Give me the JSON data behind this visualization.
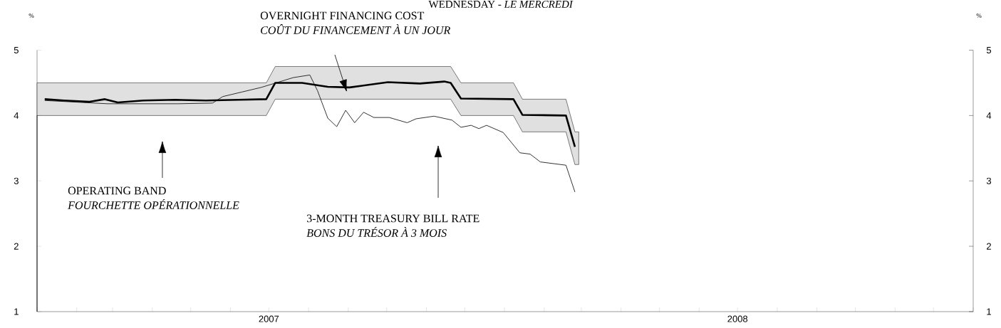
{
  "chart_data": {
    "type": "line",
    "title": "WEDNESDAY - *LE MERCREDI*",
    "ylabel": "%",
    "y2label": "%",
    "xlim": [
      "2007-01-01",
      "2009-01-01"
    ],
    "xticks": [
      {
        "value": "2007-01-01",
        "label": null
      },
      {
        "value": "2007-02-01",
        "label": null
      },
      {
        "value": "2007-03-01",
        "label": null
      },
      {
        "value": "2007-04-01",
        "label": null
      },
      {
        "value": "2007-05-01",
        "label": null
      },
      {
        "value": "2007-06-01",
        "label": null
      },
      {
        "value": "2007-07-01",
        "label": "2007"
      },
      {
        "value": "2007-08-01",
        "label": null
      },
      {
        "value": "2007-09-01",
        "label": null
      },
      {
        "value": "2007-10-01",
        "label": null
      },
      {
        "value": "2007-11-01",
        "label": null
      },
      {
        "value": "2007-12-01",
        "label": null
      },
      {
        "value": "2008-01-01",
        "label": null
      },
      {
        "value": "2008-02-01",
        "label": null
      },
      {
        "value": "2008-03-01",
        "label": null
      },
      {
        "value": "2008-04-01",
        "label": null
      },
      {
        "value": "2008-05-01",
        "label": null
      },
      {
        "value": "2008-06-01",
        "label": null
      },
      {
        "value": "2008-07-01",
        "label": "2008"
      },
      {
        "value": "2008-08-01",
        "label": null
      },
      {
        "value": "2008-09-01",
        "label": null
      },
      {
        "value": "2008-10-01",
        "label": null
      },
      {
        "value": "2008-11-01",
        "label": null
      },
      {
        "value": "2008-12-01",
        "label": null
      },
      {
        "value": "2009-01-01",
        "label": null
      }
    ],
    "ylim": [
      1,
      5
    ],
    "yticks": [
      1,
      2,
      3,
      4,
      5
    ],
    "y2lim": [
      1,
      5
    ],
    "y2ticks": [
      1,
      2,
      3,
      4,
      5
    ],
    "series": [
      {
        "color": "#000000",
        "x": [
          "2007-01-01",
          "2007-01-07",
          "2007-01-22",
          "2007-02-11",
          "2007-02-23",
          "2007-03-05",
          "2007-03-25",
          "2007-04-19",
          "2007-05-13",
          "2007-06-07",
          "2007-06-29",
          "2007-07-06",
          "2007-07-27",
          "2007-08-16",
          "2007-09-02",
          "2007-10-02",
          "2007-10-27",
          "2007-11-15",
          "2007-11-20",
          "2007-11-28",
          "2008-01-08",
          "2008-01-15",
          "2008-02-18",
          "2008-02-25",
          "2008-02-28"
        ],
        "values": [
          null,
          4.25,
          4.23,
          4.21,
          4.25,
          4.2,
          4.23,
          4.24,
          4.23,
          4.24,
          4.25,
          4.5,
          4.5,
          4.44,
          4.43,
          4.51,
          4.49,
          4.52,
          4.5,
          4.26,
          4.25,
          4.01,
          4.0,
          3.52,
          null
        ],
        "lower": [
          4.0,
          4.0,
          4.0,
          4.0,
          4.0,
          4.0,
          4.0,
          4.0,
          4.0,
          4.0,
          4.0,
          4.25,
          4.25,
          4.25,
          4.25,
          4.25,
          4.25,
          4.25,
          4.25,
          4.0,
          4.0,
          3.75,
          3.75,
          3.25,
          3.25
        ],
        "upper": [
          4.5,
          4.5,
          4.5,
          4.5,
          4.5,
          4.5,
          4.5,
          4.5,
          4.5,
          4.5,
          4.5,
          4.75,
          4.75,
          4.75,
          4.75,
          4.75,
          4.75,
          4.75,
          4.75,
          4.5,
          4.5,
          4.25,
          4.25,
          3.75,
          3.75
        ]
      },
      {
        "color": "#000000",
        "x": [
          "2007-01-07",
          "2007-02-25",
          "2007-04-21",
          "2007-05-18",
          "2007-05-26",
          "2007-06-10",
          "2007-06-25",
          "2007-07-05",
          "2007-07-20",
          "2007-08-02",
          "2007-08-08",
          "2007-08-16",
          "2007-08-23",
          "2007-08-30",
          "2007-09-06",
          "2007-09-13",
          "2007-09-21",
          "2007-10-03",
          "2007-10-17",
          "2007-10-24",
          "2007-11-07",
          "2007-11-21",
          "2007-11-28",
          "2007-12-06",
          "2007-12-12",
          "2007-12-18",
          "2007-12-31",
          "2008-01-13",
          "2008-01-21",
          "2008-01-29",
          "2008-02-18",
          "2008-02-25"
        ],
        "values": [
          4.23,
          4.18,
          4.18,
          4.19,
          4.29,
          4.36,
          4.43,
          4.49,
          4.58,
          4.62,
          4.38,
          3.96,
          3.83,
          4.08,
          3.89,
          4.05,
          3.97,
          3.97,
          3.89,
          3.95,
          3.99,
          3.93,
          3.82,
          3.85,
          3.8,
          3.85,
          3.74,
          3.43,
          3.41,
          3.29,
          3.24,
          2.83
        ]
      }
    ],
    "annotations": [
      "OVERNIGHT FINANCING COST",
      "COÛT DU FINANCEMENT À UN JOUR",
      "OPERATING BAND",
      "FOURCHETTE OPÉRATIONNELLE",
      "3-MONTH TREASURY BILL RATE",
      "BONS DU TRÉSOR À 3 MOIS"
    ]
  }
}
